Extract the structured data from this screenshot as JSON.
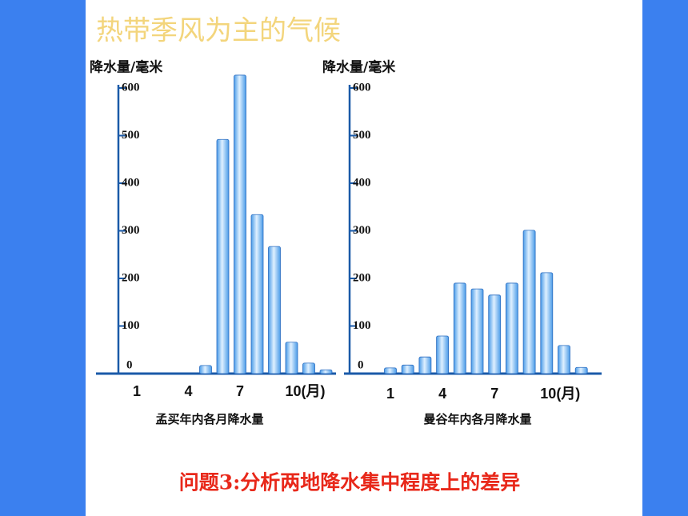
{
  "slide": {
    "title": "热带季风为主的气候",
    "question": "问题3:分析两地降水集中程度上的差异"
  },
  "chart_data": [
    {
      "type": "bar",
      "title": "孟买年内各月降水量",
      "y_label": "降水量/毫米",
      "color": "#4a9be8",
      "categories": [
        "1",
        null,
        null,
        "4",
        null,
        null,
        "7",
        null,
        null,
        "10(月)",
        null,
        null
      ],
      "values": [
        0,
        0,
        0,
        0,
        17,
        492,
        627,
        334,
        267,
        66,
        22,
        8
      ],
      "ylim": [
        0,
        600
      ],
      "yticks": [
        0,
        100,
        200,
        300,
        400,
        500,
        600
      ]
    },
    {
      "type": "bar",
      "title": "曼谷年内各月降水量",
      "y_label": "降水量/毫米",
      "color": "#4a9be8",
      "categories": [
        "1",
        null,
        null,
        "4",
        null,
        null,
        "7",
        null,
        null,
        "10(月)",
        null,
        null
      ],
      "values": [
        12,
        18,
        35,
        79,
        190,
        178,
        165,
        190,
        301,
        212,
        59,
        13
      ],
      "ylim": [
        0,
        600
      ],
      "yticks": [
        0,
        100,
        200,
        300,
        400,
        500,
        600
      ]
    }
  ]
}
